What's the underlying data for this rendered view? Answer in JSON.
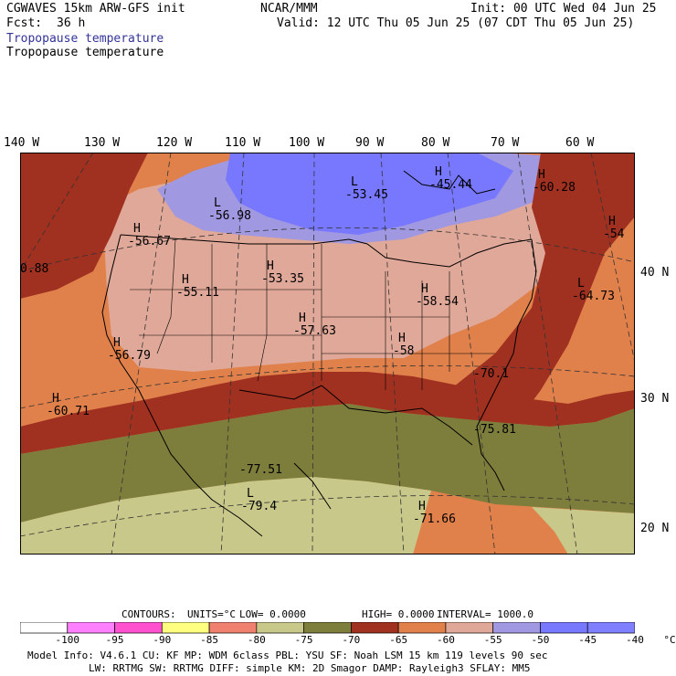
{
  "header": {
    "model": "CGWAVES 15km ARW-GFS init",
    "org": "NCAR/MMM",
    "init": "Init: 00 UTC Wed 04 Jun 25",
    "fcst_label": "Fcst:",
    "fcst_value": "36 h",
    "valid": "Valid: 12 UTC Thu 05 Jun 25 (07 CDT Thu 05 Jun 25)",
    "field_colored": "Tropopause temperature",
    "field_plain": "Tropopause temperature",
    "field_color": "#333399"
  },
  "longitudes": [
    "140 W",
    "130 W",
    "120 W",
    "110 W",
    "100 W",
    "90 W",
    "80 W",
    "70 W",
    "60 W"
  ],
  "latitudes": [
    "40 N",
    "30 N",
    "20 N"
  ],
  "map_labels": [
    {
      "kind": "L",
      "value": "-56.98"
    },
    {
      "kind": "L",
      "value": "-53.45"
    },
    {
      "kind": "H",
      "value": "-45.44"
    },
    {
      "kind": "H",
      "value": "-60.28"
    },
    {
      "kind": "H",
      "value": "-54"
    },
    {
      "kind": "H",
      "value": "-56.67"
    },
    {
      "kind": "",
      "value": "0.88"
    },
    {
      "kind": "H",
      "value": "-53.35"
    },
    {
      "kind": "H",
      "value": "-55.11"
    },
    {
      "kind": "H",
      "value": "-58.54"
    },
    {
      "kind": "L",
      "value": "-64.73"
    },
    {
      "kind": "H",
      "value": "-57.63"
    },
    {
      "kind": "H",
      "value": "-56.79"
    },
    {
      "kind": "H",
      "value": "-58"
    },
    {
      "kind": "",
      "value": "-70.1"
    },
    {
      "kind": "H",
      "value": "-60.71"
    },
    {
      "kind": "",
      "value": "-75.81"
    },
    {
      "kind": "",
      "value": "-77.51"
    },
    {
      "kind": "L",
      "value": "-79.4"
    },
    {
      "kind": "H",
      "value": "-71.66"
    }
  ],
  "contours": {
    "label": "CONTOURS:",
    "units": "UNITS=°C",
    "low": "LOW=   0.0000",
    "high": "HIGH=   0.0000",
    "interval": "INTERVAL=    1000.0"
  },
  "colorbar": {
    "colors": [
      "#ffffff",
      "#ff80ff",
      "#ff50d0",
      "#ffff80",
      "#f08070",
      "#c8c88a",
      "#7d7d3c",
      "#a03020",
      "#e0804a",
      "#e0a898",
      "#a098e0",
      "#7878ff",
      "#8080ff"
    ],
    "labels": [
      "-100",
      "-95",
      "-90",
      "-85",
      "-80",
      "-75",
      "-70",
      "-65",
      "-60",
      "-55",
      "-50",
      "-45",
      "-40",
      "°C"
    ]
  },
  "footer": {
    "line1": "Model Info: V4.6.1     CU: KF     MP: WDM 6class   PBL: YSU       SF: Noah LSM     15 km   119 levels   90 sec",
    "line2": "LW: RRTMG     SW: RRTMG   DIFF: simple KM: 2D Smagor DAMP: Rayleigh3  SFLAY: MM5"
  }
}
